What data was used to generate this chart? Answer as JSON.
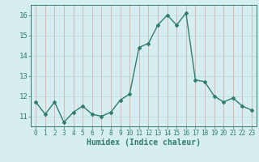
{
  "x": [
    0,
    1,
    2,
    3,
    4,
    5,
    6,
    7,
    8,
    9,
    10,
    11,
    12,
    13,
    14,
    15,
    16,
    17,
    18,
    19,
    20,
    21,
    22,
    23
  ],
  "y": [
    11.7,
    11.1,
    11.7,
    10.7,
    11.2,
    11.5,
    11.1,
    11.0,
    11.2,
    11.8,
    12.1,
    14.4,
    14.6,
    15.5,
    16.0,
    15.5,
    16.1,
    12.8,
    12.7,
    12.0,
    11.7,
    11.9,
    11.5,
    11.3
  ],
  "line_color": "#2e7d6e",
  "marker": "D",
  "marker_size": 2.0,
  "line_width": 1.0,
  "bg_color": "#d6eef0",
  "grid_color": "#c8dde0",
  "grid_color2": "#e8b8b8",
  "xlabel": "Humidex (Indice chaleur)",
  "xlabel_fontsize": 7,
  "tick_fontsize": 6.5,
  "ylim": [
    10.5,
    16.5
  ],
  "yticks": [
    11,
    12,
    13,
    14,
    15,
    16
  ],
  "xticks": [
    0,
    1,
    2,
    3,
    4,
    5,
    6,
    7,
    8,
    9,
    10,
    11,
    12,
    13,
    14,
    15,
    16,
    17,
    18,
    19,
    20,
    21,
    22,
    23
  ]
}
